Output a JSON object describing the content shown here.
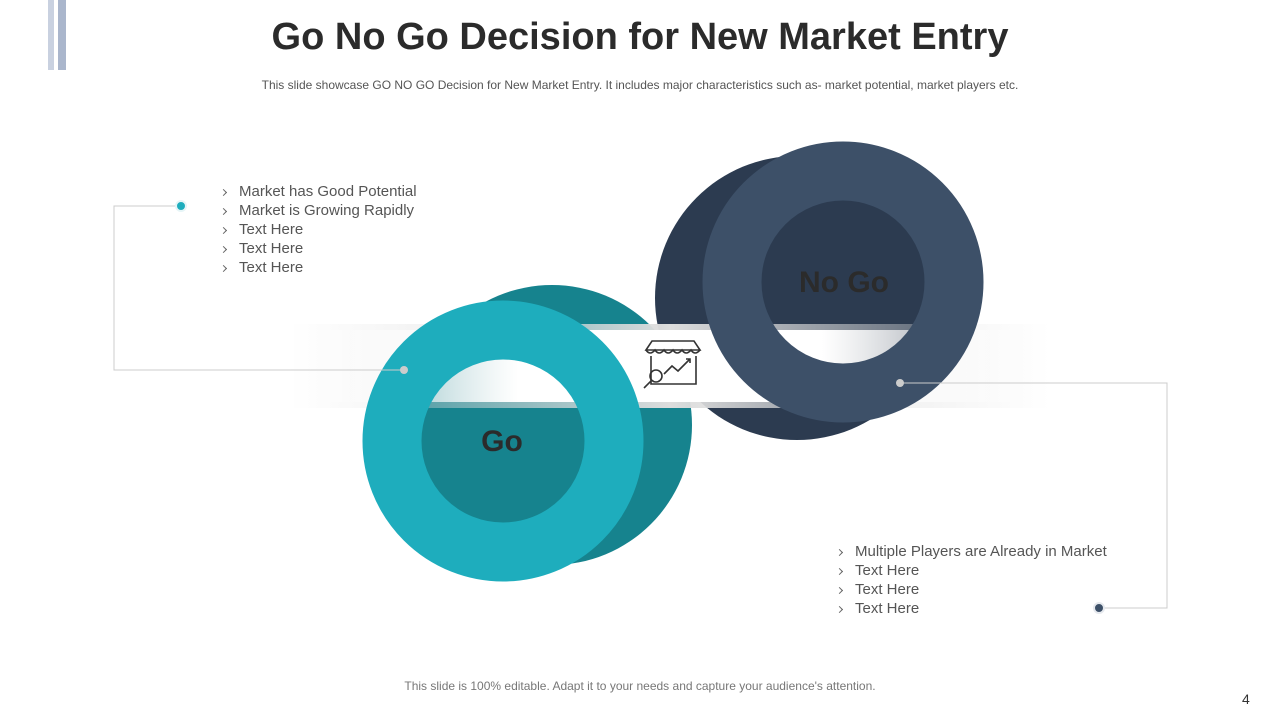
{
  "header": {
    "title": "Go No Go Decision for New Market Entry",
    "subtitle": "This slide showcase GO NO GO Decision for New Market Entry. It includes major characteristics such as-  market potential, market players etc."
  },
  "go": {
    "label": "Go",
    "points": [
      "Market has Good Potential",
      "Market is Growing Rapidly",
      "Text Here",
      "Text Here",
      "Text Here"
    ]
  },
  "no_go": {
    "label": "No Go",
    "points": [
      "Multiple Players are Already  in Market",
      "Text Here",
      "Text Here",
      "Text Here"
    ]
  },
  "footer": {
    "note": "This slide is 100% editable. Adapt it to your needs and capture your audience's attention.",
    "page_number": "4"
  }
}
